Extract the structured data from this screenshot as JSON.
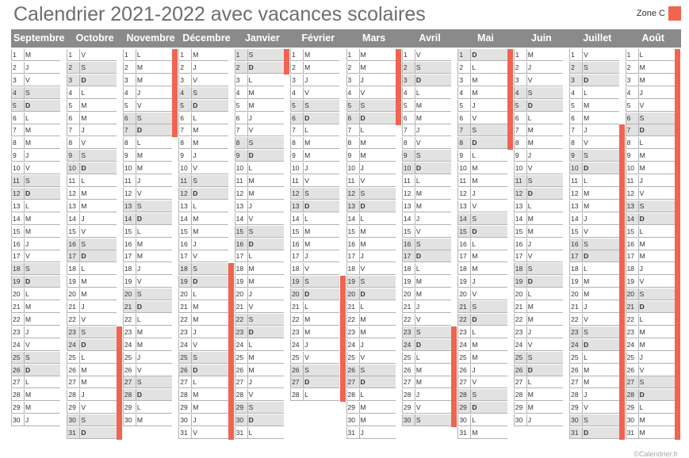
{
  "title": "Calendrier 2021-2022 avec vacances scolaires",
  "legend": {
    "label": "Zone C",
    "color": "#f06450"
  },
  "colors": {
    "vacation": "#f06450",
    "weekend": "#e2e2e2",
    "header": "#8a8a8a"
  },
  "footer": "©Calendrier.fr",
  "months": [
    {
      "name": "Septembre",
      "first_dow": 2,
      "days": 30,
      "vacations": []
    },
    {
      "name": "Octobre",
      "first_dow": 4,
      "days": 31,
      "vacations": [
        [
          23,
          31
        ]
      ]
    },
    {
      "name": "Novembre",
      "first_dow": 0,
      "days": 30,
      "vacations": [
        [
          1,
          7
        ]
      ]
    },
    {
      "name": "Décembre",
      "first_dow": 2,
      "days": 31,
      "vacations": [
        [
          18,
          31
        ]
      ]
    },
    {
      "name": "Janvier",
      "first_dow": 5,
      "days": 31,
      "vacations": [
        [
          1,
          2
        ]
      ]
    },
    {
      "name": "Février",
      "first_dow": 1,
      "days": 28,
      "vacations": []
    },
    {
      "name": "Mars",
      "first_dow": 1,
      "days": 31,
      "vacations": [
        [
          1,
          6
        ]
      ]
    },
    {
      "name": "Avril",
      "first_dow": 4,
      "days": 30,
      "vacations": []
    },
    {
      "name": "Mai",
      "first_dow": 6,
      "days": 31,
      "vacations": [
        [
          1,
          8
        ]
      ]
    },
    {
      "name": "Juin",
      "first_dow": 2,
      "days": 30,
      "vacations": []
    },
    {
      "name": "Juillet",
      "first_dow": 4,
      "days": 31,
      "vacations": [
        [
          7,
          31
        ]
      ]
    },
    {
      "name": "Août",
      "first_dow": 0,
      "days": 31,
      "vacations": [
        [
          1,
          31
        ]
      ]
    }
  ],
  "vacation_ranges_raw": {
    "Février": [
      [
        19,
        28
      ]
    ],
    "Avril": [
      [
        23,
        30
      ]
    ]
  },
  "weekday_letters": [
    "L",
    "M",
    "M",
    "J",
    "V",
    "S",
    "D"
  ]
}
